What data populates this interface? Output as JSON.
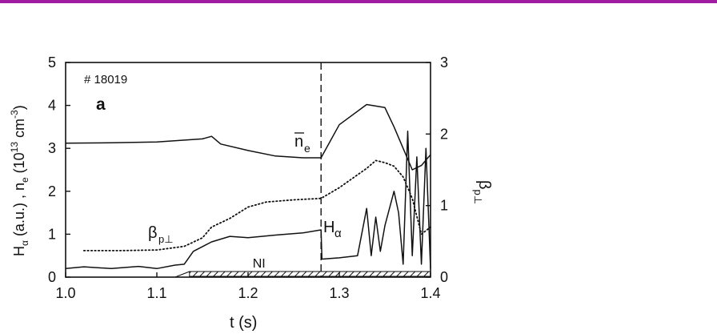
{
  "colors": {
    "accent_bar": "#a01ca0",
    "ink": "#111111"
  },
  "chart_data": {
    "type": "line",
    "panel_label": "a",
    "shot_label": "# 18019",
    "xlabel": "t (s)",
    "ylabel_left": "H_α (a.u.) , n̄_e (10^13 cm^-3)",
    "ylabel_right": "β_p⊥",
    "xlim": [
      1.0,
      1.4
    ],
    "ylim_left": [
      0,
      5
    ],
    "ylim_right": [
      0,
      3
    ],
    "x_ticks": [
      "1.0",
      "1.1",
      "1.2",
      "1.3",
      "1.4"
    ],
    "y_ticks_left": [
      "0",
      "1",
      "2",
      "3",
      "4",
      "5"
    ],
    "y_ticks_right": [
      "0",
      "1",
      "2",
      "3"
    ],
    "event_marker_x": 1.28,
    "nbi_label": "NI",
    "nbi_start_x": 1.12,
    "series": [
      {
        "name": "n̄_e",
        "axis": "left",
        "style": "solid",
        "x": [
          1.0,
          1.05,
          1.1,
          1.15,
          1.16,
          1.17,
          1.2,
          1.23,
          1.26,
          1.28,
          1.3,
          1.33,
          1.35,
          1.36,
          1.37,
          1.38,
          1.39,
          1.4
        ],
        "y": [
          3.12,
          3.13,
          3.15,
          3.22,
          3.28,
          3.1,
          2.95,
          2.82,
          2.78,
          2.78,
          3.55,
          4.02,
          3.95,
          3.5,
          3.0,
          2.5,
          2.6,
          2.85
        ]
      },
      {
        "name": "β_p⊥",
        "axis": "right",
        "style": "dotted",
        "x": [
          1.02,
          1.06,
          1.1,
          1.13,
          1.15,
          1.16,
          1.18,
          1.2,
          1.22,
          1.25,
          1.28,
          1.3,
          1.33,
          1.34,
          1.35,
          1.36,
          1.37,
          1.38,
          1.39,
          1.4
        ],
        "y": [
          0.37,
          0.37,
          0.38,
          0.43,
          0.55,
          0.7,
          0.82,
          0.98,
          1.05,
          1.08,
          1.1,
          1.25,
          1.52,
          1.63,
          1.6,
          1.55,
          1.4,
          1.1,
          0.6,
          0.7
        ]
      },
      {
        "name": "H_α",
        "axis": "left",
        "style": "solid",
        "x": [
          1.0,
          1.02,
          1.05,
          1.08,
          1.1,
          1.12,
          1.13,
          1.14,
          1.16,
          1.18,
          1.2,
          1.23,
          1.26,
          1.28,
          1.281,
          1.3,
          1.32,
          1.33,
          1.335,
          1.34,
          1.345,
          1.35,
          1.36,
          1.365,
          1.37,
          1.375,
          1.38,
          1.385,
          1.39,
          1.395,
          1.4
        ],
        "y": [
          0.2,
          0.24,
          0.2,
          0.25,
          0.2,
          0.28,
          0.3,
          0.6,
          0.82,
          0.95,
          0.92,
          0.98,
          1.03,
          1.1,
          0.42,
          0.45,
          0.5,
          1.6,
          0.5,
          1.4,
          0.6,
          1.2,
          2.0,
          1.5,
          0.3,
          3.4,
          0.5,
          2.8,
          0.3,
          3.0,
          0.2
        ]
      }
    ]
  }
}
